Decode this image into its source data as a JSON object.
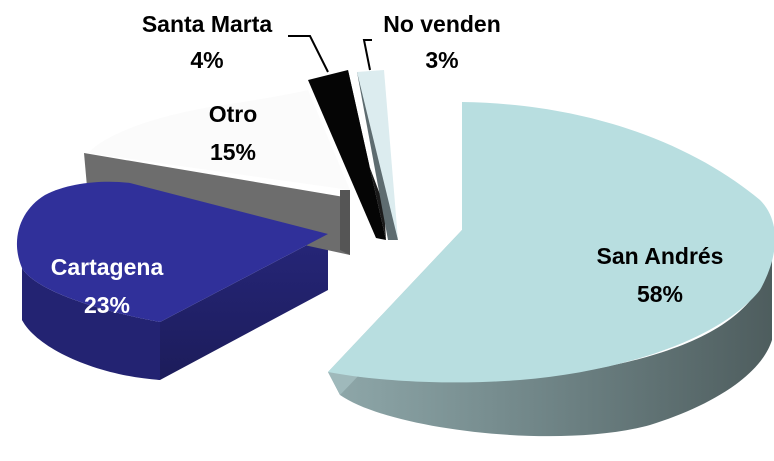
{
  "chart_data": {
    "type": "pie",
    "title": "",
    "exploded": true,
    "three_d": true,
    "slices": [
      {
        "label": "San Andrés",
        "value": 58,
        "value_label": "58%",
        "color": "#b8dee0",
        "label_color": "#000000"
      },
      {
        "label": "Cartagena",
        "value": 23,
        "value_label": "23%",
        "color": "#30309a",
        "label_color": "#ffffff"
      },
      {
        "label": "Otro",
        "value": 15,
        "value_label": "15%",
        "color": "#fbfbfb",
        "label_color": "#000000"
      },
      {
        "label": "Santa Marta",
        "value": 4,
        "value_label": "4%",
        "color": "#050505",
        "label_color": "#000000"
      },
      {
        "label": "No venden",
        "value": 3,
        "value_label": "3%",
        "color": "#dcecef",
        "label_color": "#000000"
      }
    ]
  }
}
